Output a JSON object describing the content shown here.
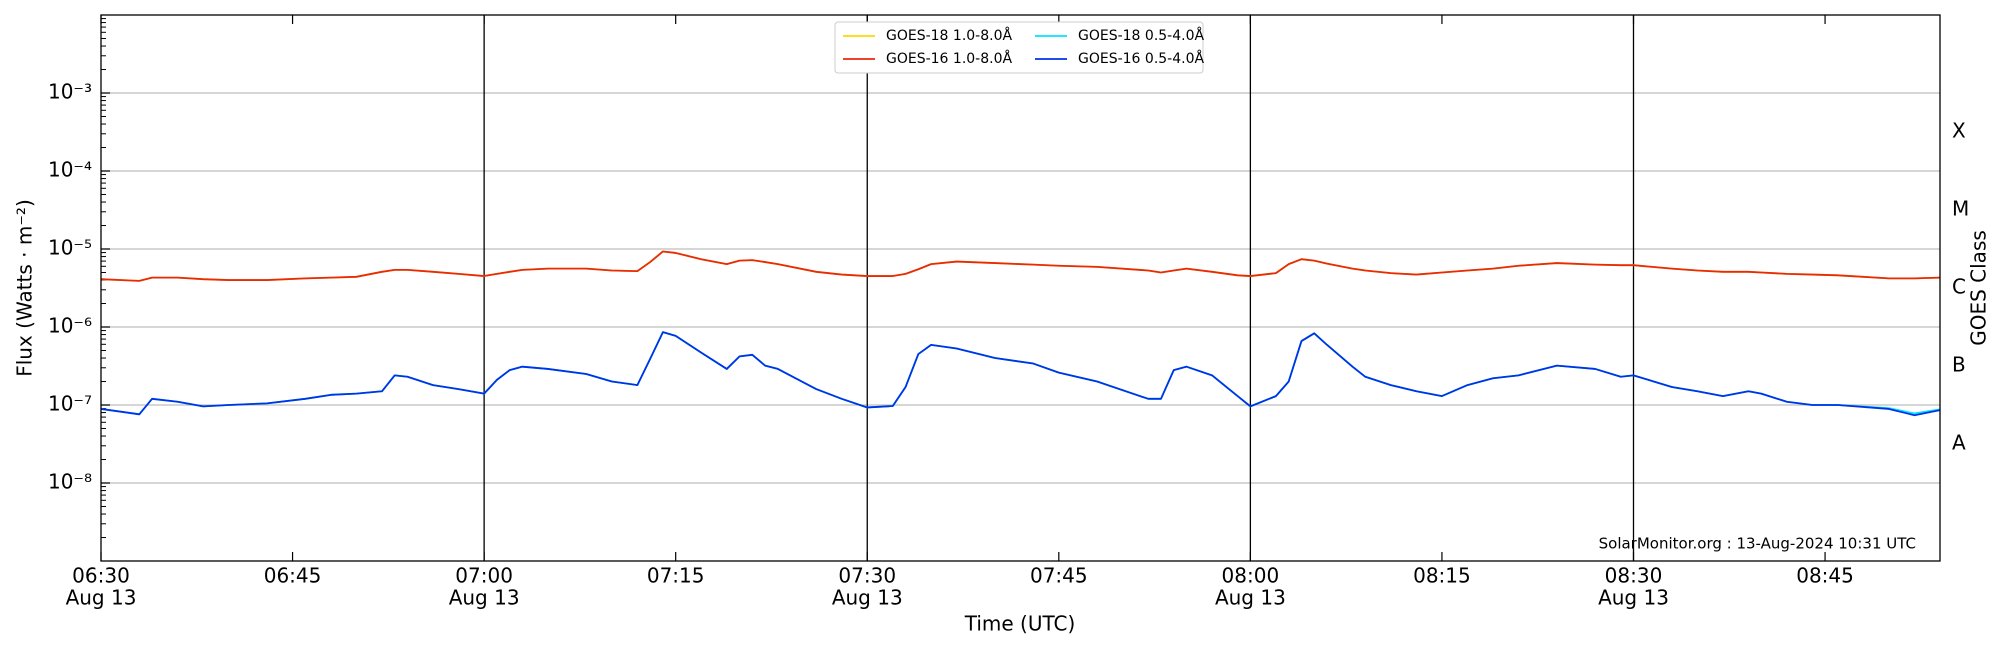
{
  "chart_data": {
    "type": "line",
    "ylabel": "Flux (Watts · m⁻²)",
    "xlabel": "Time (UTC)",
    "y2label": "GOES Class",
    "annotation": "SolarMonitor.org : 13-Aug-2024 10:31 UTC",
    "yscale": "log",
    "grid": true,
    "legend": "upper center",
    "xlim": [
      "06:30",
      "08:54"
    ],
    "ylim": [
      1e-09,
      0.01
    ],
    "xticks": [
      {
        "value": "06:30",
        "label": "06:30",
        "date": "Aug 13"
      },
      "06:45",
      {
        "value": "07:00",
        "label": "07:00",
        "date": "Aug 13"
      },
      "07:15",
      {
        "value": "07:30",
        "label": "07:30",
        "date": "Aug 13"
      },
      "07:45",
      {
        "value": "08:00",
        "label": "08:00",
        "date": "Aug 13"
      },
      "08:15",
      {
        "value": "08:30",
        "label": "08:30",
        "date": "Aug 13"
      },
      "08:45"
    ],
    "yticks": [
      {
        "value": 1e-08,
        "label": "10⁻⁸"
      },
      {
        "value": 1e-07,
        "label": "10⁻⁷"
      },
      {
        "value": 1e-06,
        "label": "10⁻⁶"
      },
      {
        "value": 1e-05,
        "label": "10⁻⁵"
      },
      {
        "value": 0.0001,
        "label": "10⁻⁴"
      },
      {
        "value": 0.001,
        "label": "10⁻³"
      }
    ],
    "y2ticks": [
      {
        "value": 1e-08,
        "label": "A"
      },
      {
        "value": 1e-07,
        "label": "B"
      },
      {
        "value": 1e-06,
        "label": "C"
      },
      {
        "value": 1e-05,
        "label": "M"
      },
      {
        "value": 0.0001,
        "label": "X"
      }
    ],
    "vlines": [
      "07:00",
      "07:30",
      "08:00",
      "08:30"
    ],
    "x": [
      "06:30",
      "06:33",
      "06:34",
      "06:36",
      "06:38",
      "06:40",
      "06:43",
      "06:46",
      "06:48",
      "06:50",
      "06:52",
      "06:53",
      "06:54",
      "06:56",
      "06:58",
      "07:00",
      "07:01",
      "07:02",
      "07:03",
      "07:05",
      "07:08",
      "07:10",
      "07:12",
      "07:13",
      "07:14",
      "07:15",
      "07:17",
      "07:19",
      "07:20",
      "07:21",
      "07:22",
      "07:23",
      "07:26",
      "07:28",
      "07:30",
      "07:32",
      "07:33",
      "07:34",
      "07:35",
      "07:37",
      "07:40",
      "07:43",
      "07:45",
      "07:48",
      "07:52",
      "07:53",
      "07:54",
      "07:55",
      "07:57",
      "07:59",
      "08:00",
      "08:02",
      "08:03",
      "08:04",
      "08:05",
      "08:06",
      "08:08",
      "08:09",
      "08:11",
      "08:13",
      "08:15",
      "08:17",
      "08:19",
      "08:21",
      "08:24",
      "08:27",
      "08:29",
      "08:30",
      "08:33",
      "08:35",
      "08:37",
      "08:39",
      "08:40",
      "08:42",
      "08:44",
      "08:46",
      "08:50",
      "08:52",
      "08:54"
    ],
    "series": [
      {
        "name": "GOES-18 1.0-8.0Å",
        "color": "#ffd700",
        "values": [
          4.1e-06,
          3.9e-06,
          4.3e-06,
          4.3e-06,
          4.1e-06,
          4e-06,
          4e-06,
          4.2e-06,
          4.3e-06,
          4.4e-06,
          5.1e-06,
          5.4e-06,
          5.4e-06,
          5.1e-06,
          4.8e-06,
          4.5e-06,
          4.8e-06,
          5.1e-06,
          5.4e-06,
          5.6e-06,
          5.6e-06,
          5.3e-06,
          5.2e-06,
          6.8e-06,
          9.3e-06,
          8.9e-06,
          7.4e-06,
          6.4e-06,
          7.1e-06,
          7.2e-06,
          6.8e-06,
          6.4e-06,
          5.1e-06,
          4.7e-06,
          4.5e-06,
          4.5e-06,
          4.8e-06,
          5.5e-06,
          6.4e-06,
          6.9e-06,
          6.6e-06,
          6.3e-06,
          6.1e-06,
          5.9e-06,
          5.3e-06,
          5e-06,
          5.3e-06,
          5.6e-06,
          5.1e-06,
          4.6e-06,
          4.5e-06,
          4.9e-06,
          6.4e-06,
          7.4e-06,
          7.1e-06,
          6.5e-06,
          5.6e-06,
          5.3e-06,
          4.9e-06,
          4.7e-06,
          5e-06,
          5.3e-06,
          5.6e-06,
          6.1e-06,
          6.6e-06,
          6.3e-06,
          6.2e-06,
          6.2e-06,
          5.6e-06,
          5.3e-06,
          5.1e-06,
          5.1e-06,
          5e-06,
          4.8e-06,
          4.7e-06,
          4.6e-06,
          4.2e-06,
          4.2e-06,
          4.3e-06
        ]
      },
      {
        "name": "GOES-16 1.0-8.0Å",
        "color": "#e82a0c",
        "values": [
          4.1e-06,
          3.9e-06,
          4.3e-06,
          4.3e-06,
          4.1e-06,
          4e-06,
          4e-06,
          4.2e-06,
          4.3e-06,
          4.4e-06,
          5.1e-06,
          5.4e-06,
          5.4e-06,
          5.1e-06,
          4.8e-06,
          4.5e-06,
          4.8e-06,
          5.1e-06,
          5.4e-06,
          5.6e-06,
          5.6e-06,
          5.3e-06,
          5.2e-06,
          6.8e-06,
          9.3e-06,
          8.9e-06,
          7.4e-06,
          6.4e-06,
          7.1e-06,
          7.2e-06,
          6.8e-06,
          6.4e-06,
          5.1e-06,
          4.7e-06,
          4.5e-06,
          4.5e-06,
          4.8e-06,
          5.5e-06,
          6.4e-06,
          6.9e-06,
          6.6e-06,
          6.3e-06,
          6.1e-06,
          5.9e-06,
          5.3e-06,
          5e-06,
          5.3e-06,
          5.6e-06,
          5.1e-06,
          4.6e-06,
          4.5e-06,
          4.9e-06,
          6.4e-06,
          7.4e-06,
          7.1e-06,
          6.5e-06,
          5.6e-06,
          5.3e-06,
          4.9e-06,
          4.7e-06,
          5e-06,
          5.3e-06,
          5.6e-06,
          6.1e-06,
          6.6e-06,
          6.3e-06,
          6.2e-06,
          6.2e-06,
          5.6e-06,
          5.3e-06,
          5.1e-06,
          5.1e-06,
          5e-06,
          4.8e-06,
          4.7e-06,
          4.6e-06,
          4.2e-06,
          4.2e-06,
          4.3e-06
        ]
      },
      {
        "name": "GOES-18 0.5-4.0Å",
        "color": "#00e5ff",
        "values": [
          8.9e-08,
          7.6e-08,
          1.2e-07,
          1.1e-07,
          9.6e-08,
          1e-07,
          1.05e-07,
          1.2e-07,
          1.35e-07,
          1.4e-07,
          1.5e-07,
          2.4e-07,
          2.3e-07,
          1.8e-07,
          1.6e-07,
          1.4e-07,
          2.1e-07,
          2.8e-07,
          3.1e-07,
          2.9e-07,
          2.5e-07,
          2e-07,
          1.8e-07,
          3.9e-07,
          8.6e-07,
          7.7e-07,
          4.7e-07,
          2.9e-07,
          4.2e-07,
          4.4e-07,
          3.2e-07,
          2.9e-07,
          1.6e-07,
          1.2e-07,
          9.3e-08,
          9.7e-08,
          1.7e-07,
          4.5e-07,
          5.9e-07,
          5.3e-07,
          4e-07,
          3.4e-07,
          2.6e-07,
          2e-07,
          1.2e-07,
          1.2e-07,
          2.8e-07,
          3.1e-07,
          2.4e-07,
          1.3e-07,
          9.6e-08,
          1.3e-07,
          2e-07,
          6.6e-07,
          8.3e-07,
          5.9e-07,
          3.1e-07,
          2.3e-07,
          1.8e-07,
          1.5e-07,
          1.3e-07,
          1.8e-07,
          2.2e-07,
          2.4e-07,
          3.2e-07,
          2.9e-07,
          2.3e-07,
          2.4e-07,
          1.7e-07,
          1.5e-07,
          1.3e-07,
          1.5e-07,
          1.4e-07,
          1.1e-07,
          1e-07,
          1e-07,
          9.1e-08,
          7.8e-08,
          8.8e-08
        ]
      },
      {
        "name": "GOES-16 0.5-4.0Å",
        "color": "#0033e6",
        "values": [
          8.9e-08,
          7.6e-08,
          1.2e-07,
          1.1e-07,
          9.6e-08,
          1e-07,
          1.05e-07,
          1.2e-07,
          1.35e-07,
          1.4e-07,
          1.5e-07,
          2.4e-07,
          2.3e-07,
          1.8e-07,
          1.6e-07,
          1.4e-07,
          2.1e-07,
          2.8e-07,
          3.1e-07,
          2.9e-07,
          2.5e-07,
          2e-07,
          1.8e-07,
          3.9e-07,
          8.6e-07,
          7.7e-07,
          4.7e-07,
          2.9e-07,
          4.2e-07,
          4.4e-07,
          3.2e-07,
          2.9e-07,
          1.6e-07,
          1.2e-07,
          9.3e-08,
          9.7e-08,
          1.7e-07,
          4.5e-07,
          5.9e-07,
          5.3e-07,
          4e-07,
          3.4e-07,
          2.6e-07,
          2e-07,
          1.2e-07,
          1.2e-07,
          2.8e-07,
          3.1e-07,
          2.4e-07,
          1.3e-07,
          9.6e-08,
          1.3e-07,
          2e-07,
          6.6e-07,
          8.3e-07,
          5.9e-07,
          3.1e-07,
          2.3e-07,
          1.8e-07,
          1.5e-07,
          1.3e-07,
          1.8e-07,
          2.2e-07,
          2.4e-07,
          3.2e-07,
          2.9e-07,
          2.3e-07,
          2.4e-07,
          1.7e-07,
          1.5e-07,
          1.3e-07,
          1.5e-07,
          1.4e-07,
          1.1e-07,
          1e-07,
          1e-07,
          8.9e-08,
          7.4e-08,
          8.6e-08
        ]
      }
    ]
  }
}
